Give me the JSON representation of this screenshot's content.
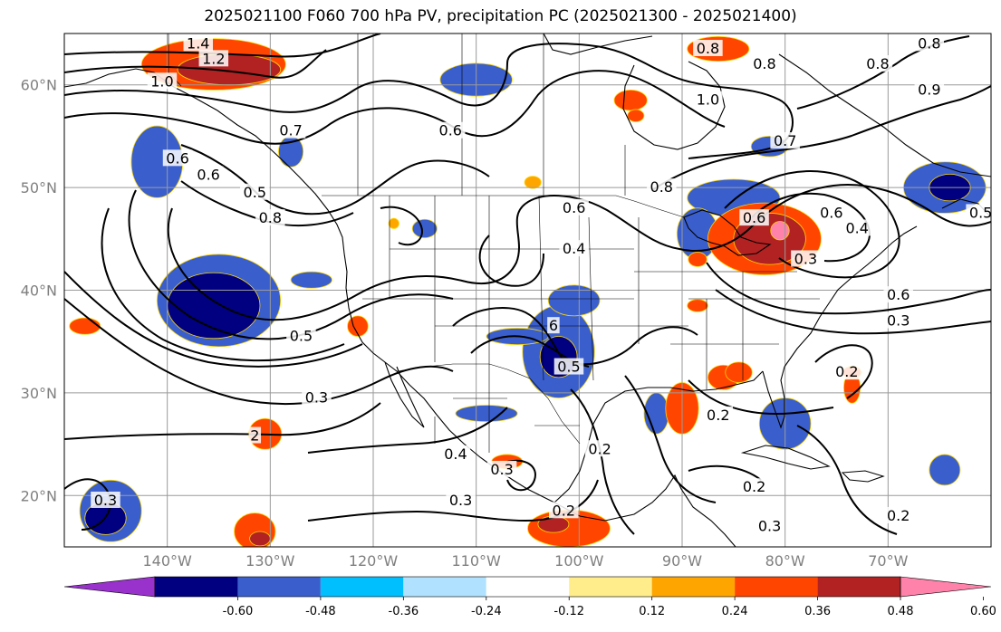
{
  "title": "2025021100 F060 700 hPa PV, precipitation PC (2025021300 - 2025021400)",
  "map": {
    "lon_range": [
      -150,
      -60
    ],
    "lat_range": [
      15,
      65
    ],
    "lon_ticks": [
      {
        "lon": -140,
        "label": "140°W"
      },
      {
        "lon": -130,
        "label": "130°W"
      },
      {
        "lon": -120,
        "label": "120°W"
      },
      {
        "lon": -110,
        "label": "110°W"
      },
      {
        "lon": -100,
        "label": "100°W"
      },
      {
        "lon": -90,
        "label": "90°W"
      },
      {
        "lon": -80,
        "label": "80°W"
      },
      {
        "lon": -70,
        "label": "70°W"
      }
    ],
    "lat_ticks": [
      {
        "lat": 60,
        "label": "60°N"
      },
      {
        "lat": 50,
        "label": "50°N"
      },
      {
        "lat": 40,
        "label": "40°N"
      },
      {
        "lat": 30,
        "label": "30°N"
      },
      {
        "lat": 20,
        "label": "20°N"
      }
    ],
    "gridlines": true
  },
  "colorbar": {
    "ticks": [
      "-0.60",
      "-0.48",
      "-0.36",
      "-0.24",
      "-0.12",
      "0.12",
      "0.24",
      "0.36",
      "0.48",
      "0.60"
    ],
    "colors": [
      "#9932cc",
      "#000080",
      "#3a5fcd",
      "#00bfff",
      "#b0e2ff",
      "#ffffff",
      "#ffec8b",
      "#ffa500",
      "#ff4500",
      "#b22222",
      "#ff82ab"
    ],
    "extend": "both"
  },
  "pc_blobs": [
    {
      "lon": -141,
      "lat": 52.5,
      "rx": 2.5,
      "ry": 3.5,
      "color": "#3a5fcd"
    },
    {
      "lon": -135,
      "lat": 39,
      "rx": 6,
      "ry": 4.5,
      "color": "#3a5fcd"
    },
    {
      "lon": -135.5,
      "lat": 38.5,
      "rx": 4.5,
      "ry": 3.2,
      "color": "#000080"
    },
    {
      "lon": -145.5,
      "lat": 18.5,
      "rx": 3,
      "ry": 3,
      "color": "#3a5fcd"
    },
    {
      "lon": -146,
      "lat": 17.8,
      "rx": 2,
      "ry": 1.6,
      "color": "#000080"
    },
    {
      "lon": -110,
      "lat": 60.5,
      "rx": 3.5,
      "ry": 1.6,
      "color": "#3a5fcd"
    },
    {
      "lon": -102,
      "lat": 34,
      "rx": 3.5,
      "ry": 4.5,
      "color": "#3a5fcd"
    },
    {
      "lon": -102,
      "lat": 33.5,
      "rx": 1.8,
      "ry": 2,
      "color": "#000080"
    },
    {
      "lon": -106,
      "lat": 35.5,
      "rx": 3,
      "ry": 0.8,
      "color": "#3a5fcd"
    },
    {
      "lon": -100.5,
      "lat": 39,
      "rx": 2.5,
      "ry": 1.5,
      "color": "#3a5fcd"
    },
    {
      "lon": -109,
      "lat": 28,
      "rx": 3,
      "ry": 0.8,
      "color": "#3a5fcd"
    },
    {
      "lon": -92.5,
      "lat": 28,
      "rx": 1.2,
      "ry": 2,
      "color": "#3a5fcd"
    },
    {
      "lon": -85,
      "lat": 49,
      "rx": 4.5,
      "ry": 1.8,
      "color": "#3a5fcd"
    },
    {
      "lon": -88.5,
      "lat": 45.5,
      "rx": 2,
      "ry": 2.5,
      "color": "#3a5fcd"
    },
    {
      "lon": -80,
      "lat": 27,
      "rx": 2.5,
      "ry": 2.5,
      "color": "#3a5fcd"
    },
    {
      "lon": -64.5,
      "lat": 50,
      "rx": 4,
      "ry": 2.5,
      "color": "#3a5fcd"
    },
    {
      "lon": -64,
      "lat": 50,
      "rx": 2,
      "ry": 1.3,
      "color": "#000080"
    },
    {
      "lon": -81.5,
      "lat": 54,
      "rx": 1.8,
      "ry": 1,
      "color": "#3a5fcd"
    },
    {
      "lon": -64.5,
      "lat": 22.5,
      "rx": 1.5,
      "ry": 1.5,
      "color": "#3a5fcd"
    },
    {
      "lon": -126,
      "lat": 41,
      "rx": 2,
      "ry": 0.8,
      "color": "#3a5fcd"
    },
    {
      "lon": -115,
      "lat": 46,
      "rx": 1.2,
      "ry": 0.9,
      "color": "#3a5fcd"
    },
    {
      "lon": -128,
      "lat": 53.5,
      "rx": 1.2,
      "ry": 1.5,
      "color": "#3a5fcd"
    },
    {
      "lon": -135.5,
      "lat": 62,
      "rx": 7,
      "ry": 2.5,
      "color": "#ff4500"
    },
    {
      "lon": -134,
      "lat": 61.5,
      "rx": 5,
      "ry": 1.5,
      "color": "#b22222"
    },
    {
      "lon": -82,
      "lat": 45,
      "rx": 5.5,
      "ry": 3.5,
      "color": "#ff4500"
    },
    {
      "lon": -81.5,
      "lat": 45,
      "rx": 3.5,
      "ry": 2.5,
      "color": "#b22222"
    },
    {
      "lon": -80.5,
      "lat": 45.8,
      "rx": 0.9,
      "ry": 0.9,
      "color": "#ff82ab"
    },
    {
      "lon": -86.5,
      "lat": 63.5,
      "rx": 3,
      "ry": 1.2,
      "color": "#ff4500"
    },
    {
      "lon": -95,
      "lat": 58.5,
      "rx": 1.6,
      "ry": 1,
      "color": "#ff4500"
    },
    {
      "lon": -90,
      "lat": 28.5,
      "rx": 1.6,
      "ry": 2.5,
      "color": "#ff4500"
    },
    {
      "lon": -86,
      "lat": 31.5,
      "rx": 1.5,
      "ry": 1.2,
      "color": "#ff4500"
    },
    {
      "lon": -73.5,
      "lat": 30.5,
      "rx": 0.8,
      "ry": 1.5,
      "color": "#ff4500"
    },
    {
      "lon": -101,
      "lat": 16.8,
      "rx": 4,
      "ry": 1.8,
      "color": "#ff4500"
    },
    {
      "lon": -102.5,
      "lat": 17.2,
      "rx": 1.5,
      "ry": 0.8,
      "color": "#b22222"
    },
    {
      "lon": -131.5,
      "lat": 16.5,
      "rx": 2,
      "ry": 1.8,
      "color": "#ff4500"
    },
    {
      "lon": -131,
      "lat": 15.8,
      "rx": 1,
      "ry": 0.7,
      "color": "#b22222"
    },
    {
      "lon": -130.5,
      "lat": 26,
      "rx": 1.6,
      "ry": 1.5,
      "color": "#ff4500"
    },
    {
      "lon": -148,
      "lat": 36.5,
      "rx": 1.5,
      "ry": 0.8,
      "color": "#ff4500"
    },
    {
      "lon": -121.5,
      "lat": 36.5,
      "rx": 1,
      "ry": 1,
      "color": "#ff4500"
    },
    {
      "lon": -88.5,
      "lat": 38.5,
      "rx": 1,
      "ry": 0.6,
      "color": "#ff4500"
    },
    {
      "lon": -88.5,
      "lat": 43,
      "rx": 0.9,
      "ry": 0.7,
      "color": "#ff4500"
    },
    {
      "lon": -84.5,
      "lat": 32,
      "rx": 1.3,
      "ry": 1,
      "color": "#ff4500"
    },
    {
      "lon": -94.5,
      "lat": 57,
      "rx": 0.8,
      "ry": 0.6,
      "color": "#ff4500"
    },
    {
      "lon": -129,
      "lat": 28.5,
      "rx": 0,
      "ry": 0,
      "color": "#ff4500"
    },
    {
      "lon": -107,
      "lat": 23.3,
      "rx": 1.5,
      "ry": 0.7,
      "color": "#ff4500"
    },
    {
      "lon": -104.5,
      "lat": 50.5,
      "rx": 0.8,
      "ry": 0.6,
      "color": "#ffa500"
    },
    {
      "lon": -73.5,
      "lat": 32,
      "rx": 0.9,
      "ry": 0.6,
      "color": "#ff4500"
    },
    {
      "lon": -66.5,
      "lat": 23,
      "rx": 0,
      "ry": 0,
      "color": "#ff4500"
    },
    {
      "lon": -118,
      "lat": 46.5,
      "rx": 0.5,
      "ry": 0.5,
      "color": "#ffa500"
    }
  ],
  "contour_labels": [
    {
      "lon": -137,
      "lat": 64,
      "text": "1.4"
    },
    {
      "lon": -135.5,
      "lat": 62.5,
      "text": "1.2"
    },
    {
      "lon": -140.5,
      "lat": 60.3,
      "text": "1.0"
    },
    {
      "lon": -128,
      "lat": 55.5,
      "text": "0.7"
    },
    {
      "lon": -136,
      "lat": 51.2,
      "text": "0.6"
    },
    {
      "lon": -139,
      "lat": 52.8,
      "text": "0.6"
    },
    {
      "lon": -131.5,
      "lat": 49.5,
      "text": "0.5"
    },
    {
      "lon": -130,
      "lat": 47,
      "text": "0.8"
    },
    {
      "lon": -112.5,
      "lat": 55.5,
      "text": "0.6"
    },
    {
      "lon": -100.5,
      "lat": 48,
      "text": "0.6"
    },
    {
      "lon": -100.5,
      "lat": 44,
      "text": "0.4"
    },
    {
      "lon": -92,
      "lat": 50,
      "text": "0.8"
    },
    {
      "lon": -87.5,
      "lat": 58.5,
      "text": "1.0"
    },
    {
      "lon": -87.5,
      "lat": 63.5,
      "text": "0.8"
    },
    {
      "lon": -82,
      "lat": 62,
      "text": "0.8"
    },
    {
      "lon": -80,
      "lat": 54.5,
      "text": "0.7"
    },
    {
      "lon": -66,
      "lat": 64,
      "text": "0.8"
    },
    {
      "lon": -71,
      "lat": 62,
      "text": "0.8"
    },
    {
      "lon": -66,
      "lat": 59.5,
      "text": "0.9"
    },
    {
      "lon": -83,
      "lat": 47,
      "text": "0.6"
    },
    {
      "lon": -75.5,
      "lat": 47.5,
      "text": "0.6"
    },
    {
      "lon": -73,
      "lat": 46,
      "text": "0.4"
    },
    {
      "lon": -78,
      "lat": 43,
      "text": "0.3"
    },
    {
      "lon": -69,
      "lat": 39.5,
      "text": "0.6"
    },
    {
      "lon": -69,
      "lat": 37,
      "text": "0.3"
    },
    {
      "lon": -74,
      "lat": 32,
      "text": "0.2"
    },
    {
      "lon": -61,
      "lat": 47.5,
      "text": "0.5"
    },
    {
      "lon": -102.5,
      "lat": 36.5,
      "text": "6"
    },
    {
      "lon": -101,
      "lat": 32.5,
      "text": "0.5"
    },
    {
      "lon": -127,
      "lat": 35.5,
      "text": "0.5"
    },
    {
      "lon": -125.5,
      "lat": 29.5,
      "text": "0.3"
    },
    {
      "lon": -112,
      "lat": 24,
      "text": "0.4"
    },
    {
      "lon": -107.5,
      "lat": 22.5,
      "text": "0.3"
    },
    {
      "lon": -111.5,
      "lat": 19.5,
      "text": "0.3"
    },
    {
      "lon": -98,
      "lat": 24.5,
      "text": "0.2"
    },
    {
      "lon": -86.5,
      "lat": 27.8,
      "text": "0.2"
    },
    {
      "lon": -83,
      "lat": 20.8,
      "text": "0.2"
    },
    {
      "lon": -81.5,
      "lat": 17,
      "text": "0.3"
    },
    {
      "lon": -101.5,
      "lat": 18.5,
      "text": "0.2"
    },
    {
      "lon": -146,
      "lat": 19.5,
      "text": "0.3"
    },
    {
      "lon": -131.5,
      "lat": 25.8,
      "text": "2"
    },
    {
      "lon": -69,
      "lat": 18,
      "text": "0.2"
    }
  ]
}
